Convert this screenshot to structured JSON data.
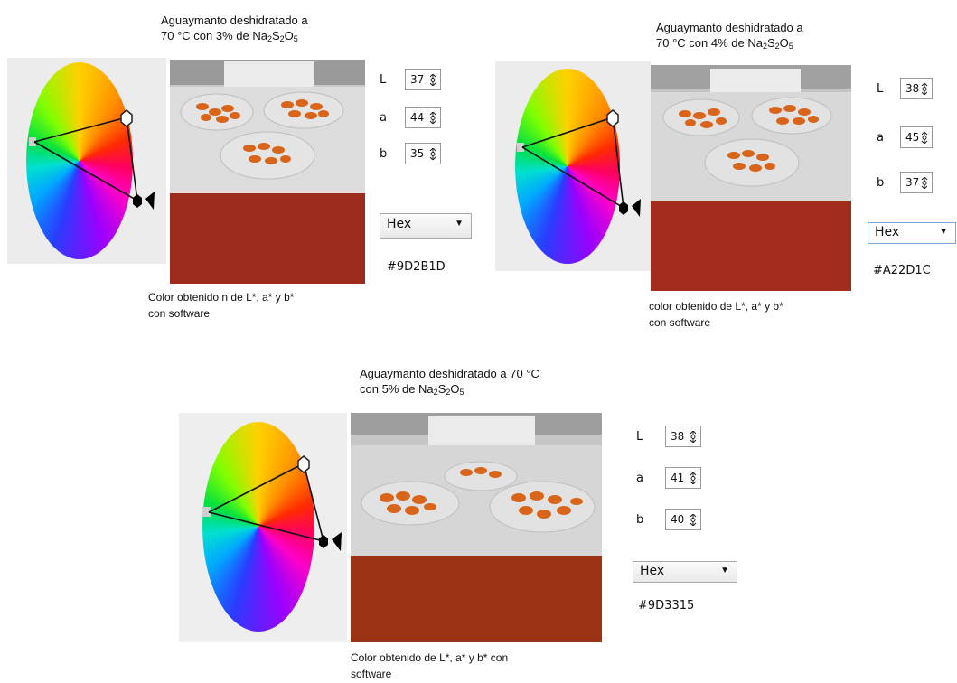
{
  "panels": [
    {
      "title_line1": "Aguaymanto deshidratado a",
      "title_line2_pre": "70 °C con 3% de Na",
      "caption_line1": "Color obtenido n de L*, a* y b*",
      "caption_line2": "con software",
      "lab": [
        {
          "label": "L",
          "value": "37"
        },
        {
          "label": "a",
          "value": "44"
        },
        {
          "label": "b",
          "value": "35"
        }
      ],
      "format_label": "Hex",
      "hex_value": "#9D2B1D",
      "swatch_color": "#9D2B1D"
    },
    {
      "title_line1": "Aguaymanto deshidratado a",
      "title_line2_pre": "70 °C con 4% de Na",
      "caption_line1": "color obtenido de L*, a* y b*",
      "caption_line2": "con software",
      "lab": [
        {
          "label": "L",
          "value": "38"
        },
        {
          "label": "a",
          "value": "45"
        },
        {
          "label": "b",
          "value": "37"
        }
      ],
      "format_label": "Hex",
      "hex_value": "#A22D1C",
      "swatch_color": "#A22D1C"
    },
    {
      "title_line1": "Aguaymanto deshidratado a 70 °C",
      "title_line2_pre": "con 5% de Na",
      "caption_line1": "Color obtenido de L*, a* y b* con",
      "caption_line2": "software",
      "lab": [
        {
          "label": "L",
          "value": "38"
        },
        {
          "label": "a",
          "value": "41"
        },
        {
          "label": "b",
          "value": "40"
        }
      ],
      "format_label": "Hex",
      "hex_value": "#9D3315",
      "swatch_color": "#9D3315"
    }
  ],
  "formula": {
    "sub1": "2",
    "mid": "S",
    "sub2": "2",
    "end": "O",
    "sub3": "5"
  },
  "icons": {
    "spinner": "spinner-arrows-icon",
    "dropdown": "chevron-down-icon",
    "wheel": "color-wheel-icon"
  }
}
